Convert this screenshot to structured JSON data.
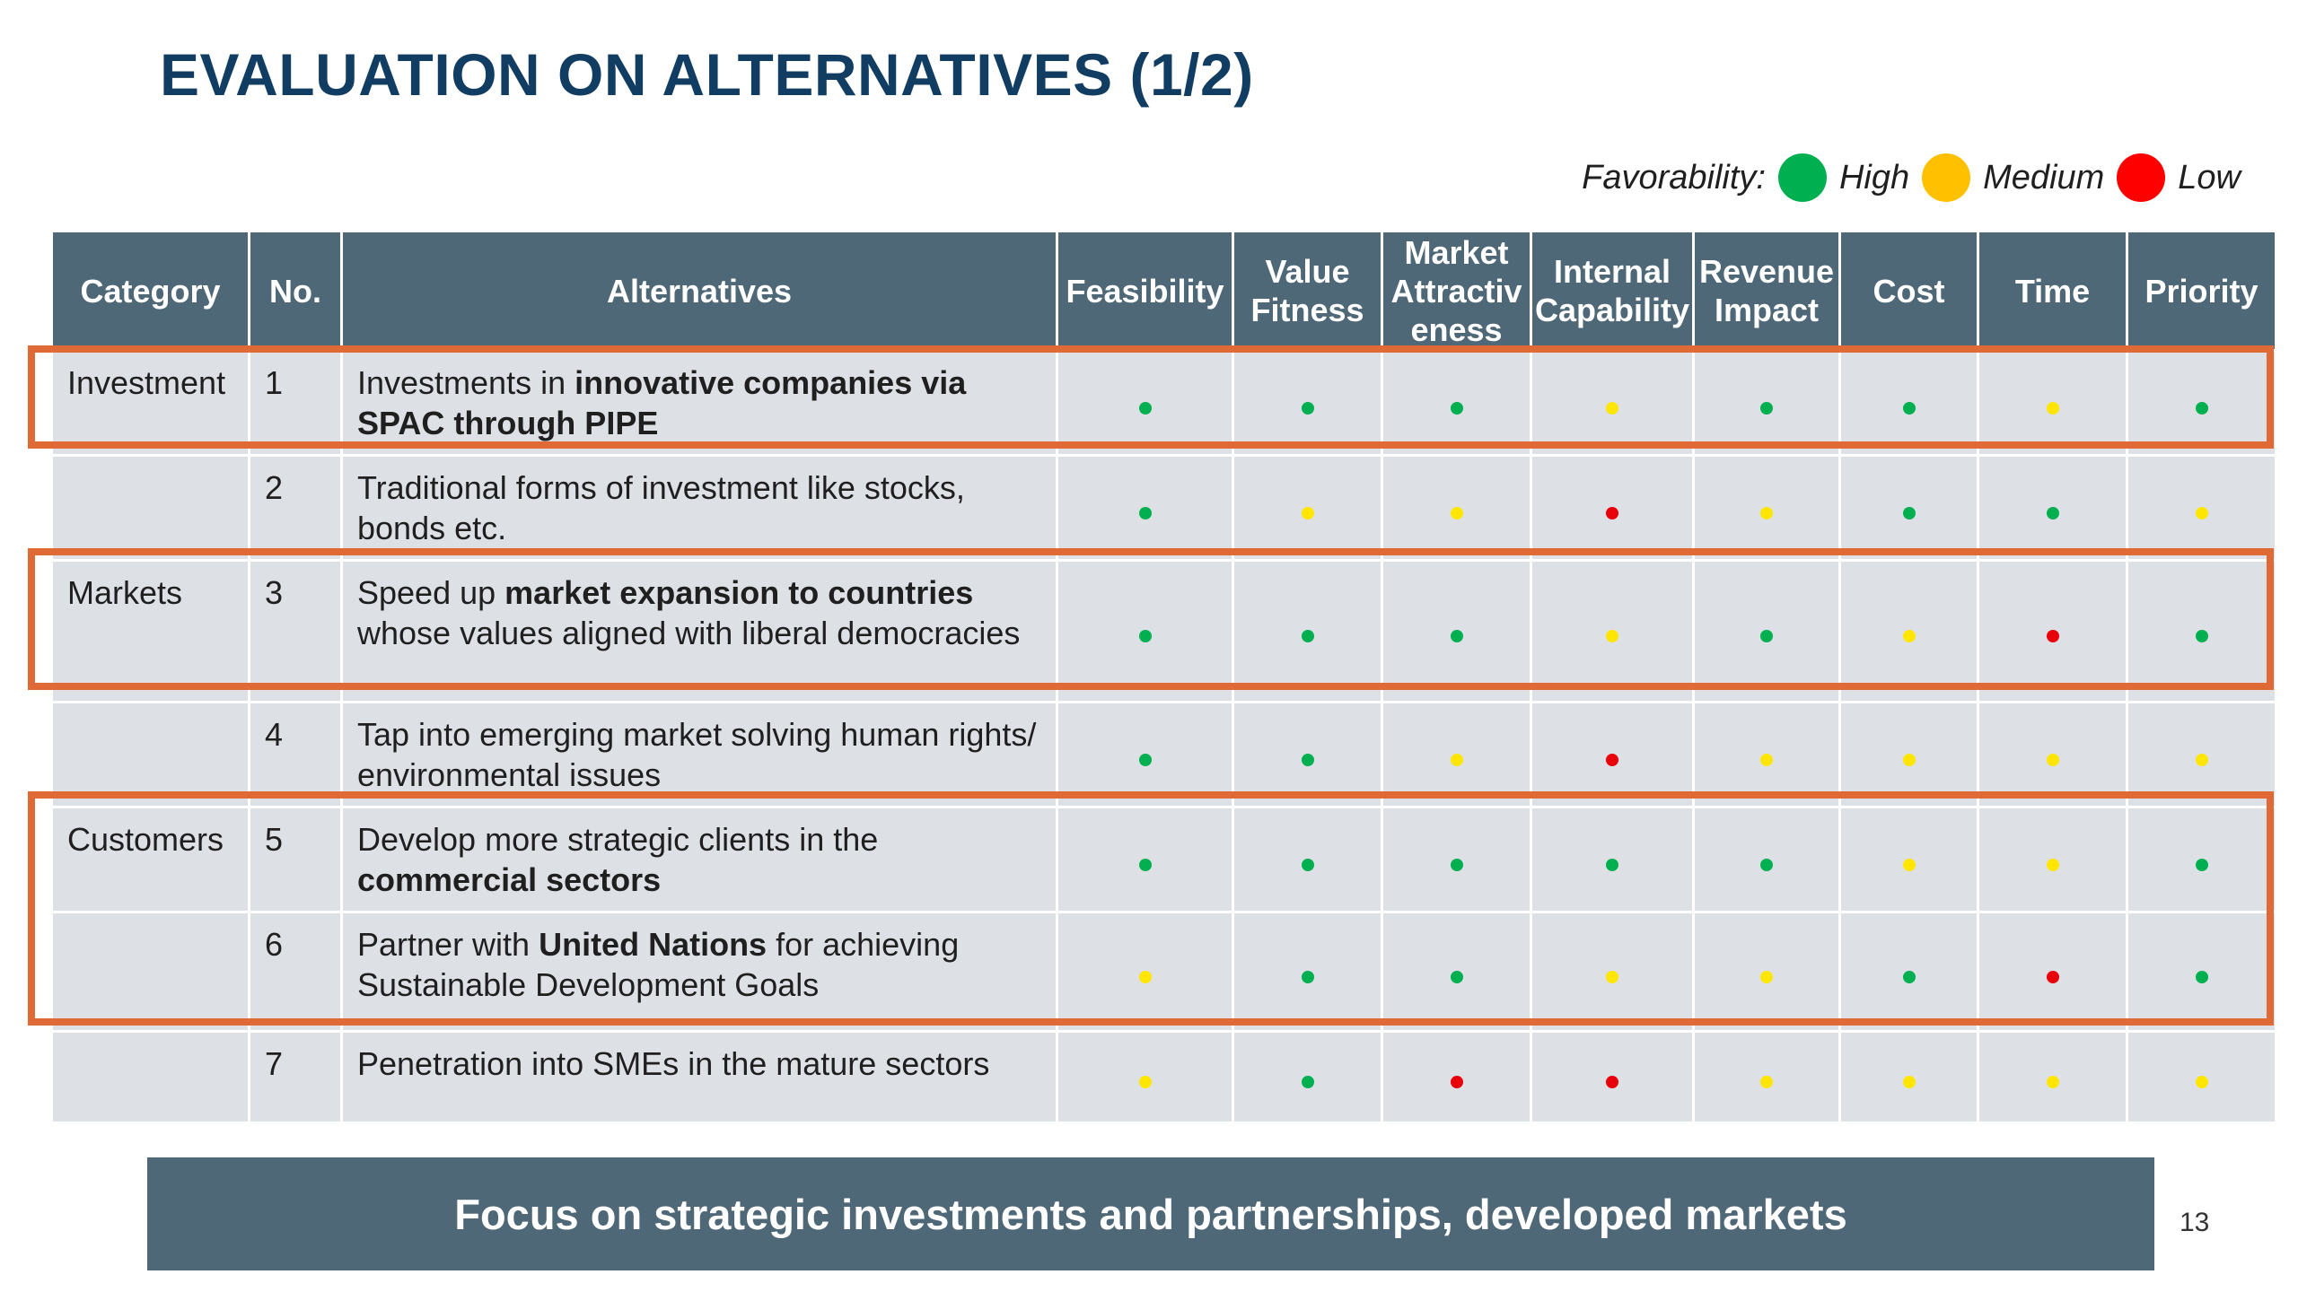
{
  "title": "EVALUATION ON ALTERNATIVES (1/2)",
  "legend": {
    "label": "Favorability:",
    "items": [
      {
        "label": "High",
        "color": "#00b050"
      },
      {
        "label": "Medium",
        "color": "#ffc000"
      },
      {
        "label": "Low",
        "color": "#ff0000"
      }
    ]
  },
  "colors": {
    "G": "#00b050",
    "Y": "#ffe600",
    "R": "#e8000b"
  },
  "table": {
    "headers": {
      "category": "Category",
      "no": "No.",
      "alternatives": "Alternatives",
      "feasibility": "Feasibility",
      "value_fitness": "Value Fitness",
      "market_attractiveness": "Market Attractiv eness",
      "internal_capability": "Internal Capability",
      "revenue_impact": "Revenue Impact",
      "cost": "Cost",
      "time": "Time",
      "priority": "Priority"
    },
    "rows": [
      {
        "category": "Investment",
        "no": "1",
        "alt_a": "Investments in ",
        "alt_b": "innovative companies via SPAC through PIPE",
        "alt_c": "",
        "ratings": [
          "G",
          "G",
          "G",
          "Y",
          "G",
          "G",
          "Y",
          "G"
        ]
      },
      {
        "category": "",
        "no": "2",
        "alt_a": "Traditional forms of investment like stocks, bonds etc.",
        "alt_b": "",
        "alt_c": "",
        "ratings": [
          "G",
          "Y",
          "Y",
          "R",
          "Y",
          "G",
          "G",
          "Y"
        ]
      },
      {
        "category": "Markets",
        "no": "3",
        "alt_a": "Speed up ",
        "alt_b": "market expansion to countries",
        "alt_c": " whose values aligned with liberal democracies",
        "ratings": [
          "G",
          "G",
          "G",
          "Y",
          "G",
          "Y",
          "R",
          "G"
        ]
      },
      {
        "category": "",
        "no": "4",
        "alt_a": "Tap into emerging market solving human rights/ environmental issues",
        "alt_b": "",
        "alt_c": "",
        "ratings": [
          "G",
          "G",
          "Y",
          "R",
          "Y",
          "Y",
          "Y",
          "Y"
        ]
      },
      {
        "category": "Customers",
        "no": "5",
        "alt_a": "Develop more strategic clients in the ",
        "alt_b": "commercial sectors",
        "alt_c": "",
        "ratings": [
          "G",
          "G",
          "G",
          "G",
          "G",
          "Y",
          "Y",
          "G"
        ]
      },
      {
        "category": "",
        "no": "6",
        "alt_a": "Partner with ",
        "alt_b": "United Nations",
        "alt_c": " for achieving Sustainable Development Goals",
        "ratings": [
          "Y",
          "G",
          "G",
          "Y",
          "Y",
          "G",
          "R",
          "G"
        ]
      },
      {
        "category": "",
        "no": "7",
        "alt_a": "Penetration into SMEs in the mature sectors",
        "alt_b": "",
        "alt_c": "",
        "ratings": [
          "Y",
          "G",
          "R",
          "R",
          "Y",
          "Y",
          "Y",
          "Y"
        ]
      }
    ]
  },
  "banner": "Focus on strategic investments and partnerships, developed markets",
  "page_number": "13"
}
